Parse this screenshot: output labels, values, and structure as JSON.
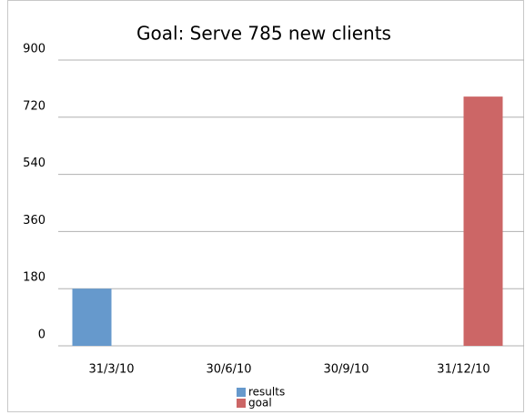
{
  "chart_data": {
    "type": "bar",
    "title": "Goal: Serve 785 new clients",
    "categories": [
      "31/3/10",
      "30/6/10",
      "30/9/10",
      "31/12/10"
    ],
    "series": [
      {
        "name": "results",
        "color": "#6699cc",
        "values": [
          180,
          null,
          null,
          null
        ]
      },
      {
        "name": "goal",
        "color": "#cc6666",
        "values": [
          null,
          null,
          null,
          785
        ]
      }
    ],
    "ylim": [
      0,
      900
    ],
    "yticks": [
      0,
      180,
      360,
      540,
      720,
      900
    ],
    "grid": true,
    "legend": "bottom"
  }
}
